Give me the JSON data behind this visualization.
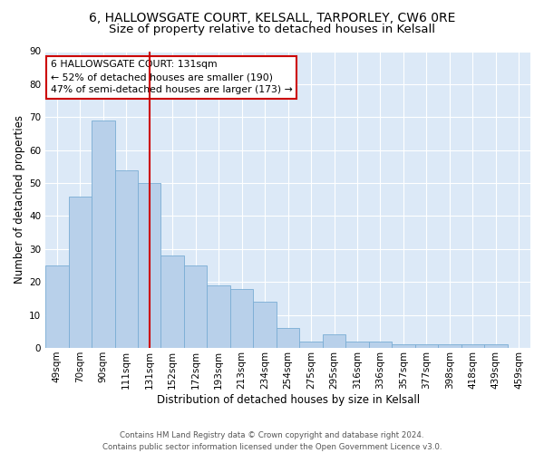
{
  "title": "6, HALLOWSGATE COURT, KELSALL, TARPORLEY, CW6 0RE",
  "subtitle": "Size of property relative to detached houses in Kelsall",
  "xlabel": "Distribution of detached houses by size in Kelsall",
  "ylabel": "Number of detached properties",
  "bar_values": [
    25,
    46,
    69,
    54,
    50,
    28,
    25,
    19,
    18,
    14,
    6,
    2,
    4,
    2,
    2,
    1,
    1,
    1,
    1,
    1
  ],
  "categories": [
    "49sqm",
    "70sqm",
    "90sqm",
    "111sqm",
    "131sqm",
    "152sqm",
    "172sqm",
    "193sqm",
    "213sqm",
    "234sqm",
    "254sqm",
    "275sqm",
    "295sqm",
    "316sqm",
    "336sqm",
    "357sqm",
    "377sqm",
    "398sqm",
    "418sqm",
    "439sqm",
    "459sqm"
  ],
  "bar_color": "#b8d0ea",
  "bar_edge_color": "#7aadd4",
  "vline_x_index": 4,
  "vline_color": "#cc0000",
  "annotation_line1": "6 HALLOWSGATE COURT: 131sqm",
  "annotation_line2": "← 52% of detached houses are smaller (190)",
  "annotation_line3": "47% of semi-detached houses are larger (173) →",
  "annotation_box_color": "white",
  "annotation_box_edge": "#cc0000",
  "ylim": [
    0,
    90
  ],
  "yticks": [
    0,
    10,
    20,
    30,
    40,
    50,
    60,
    70,
    80,
    90
  ],
  "bg_color": "#dce9f7",
  "footer": "Contains HM Land Registry data © Crown copyright and database right 2024.\nContains public sector information licensed under the Open Government Licence v3.0.",
  "title_fontsize": 10,
  "subtitle_fontsize": 9.5,
  "axis_label_fontsize": 8.5,
  "tick_fontsize": 7.5
}
